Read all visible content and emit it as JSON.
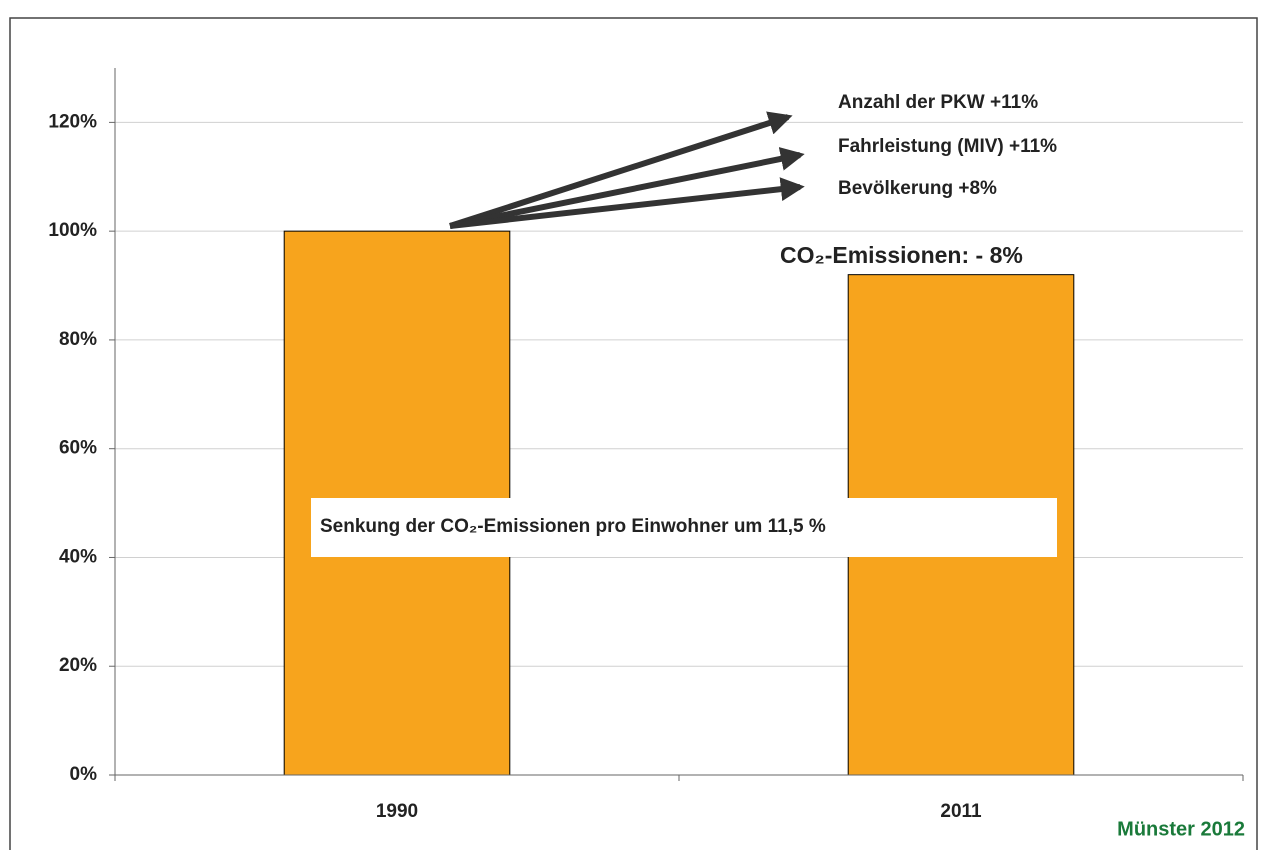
{
  "chart_data": {
    "type": "bar",
    "categories": [
      "1990",
      "2011"
    ],
    "values": [
      100,
      92
    ],
    "color": "#f7a41d",
    "ylim": [
      0,
      130
    ],
    "yticks": [
      {
        "value": 0,
        "label": "0%"
      },
      {
        "value": 20,
        "label": "20%"
      },
      {
        "value": 40,
        "label": "40%"
      },
      {
        "value": 60,
        "label": "60%"
      },
      {
        "value": 80,
        "label": "80%"
      },
      {
        "value": 100,
        "label": "100%"
      },
      {
        "value": 120,
        "label": "120%"
      }
    ],
    "grid": true,
    "annotations": [
      "Anzahl der PKW +11%",
      "Fahrleistung (MIV) +11%",
      "Bevölkerung +8%"
    ],
    "value_note": "CO₂-Emissionen: - 8%",
    "note": "Senkung der CO₂-Emissionen pro Einwohner um 11,5 %",
    "footer": "Münster 2012"
  }
}
